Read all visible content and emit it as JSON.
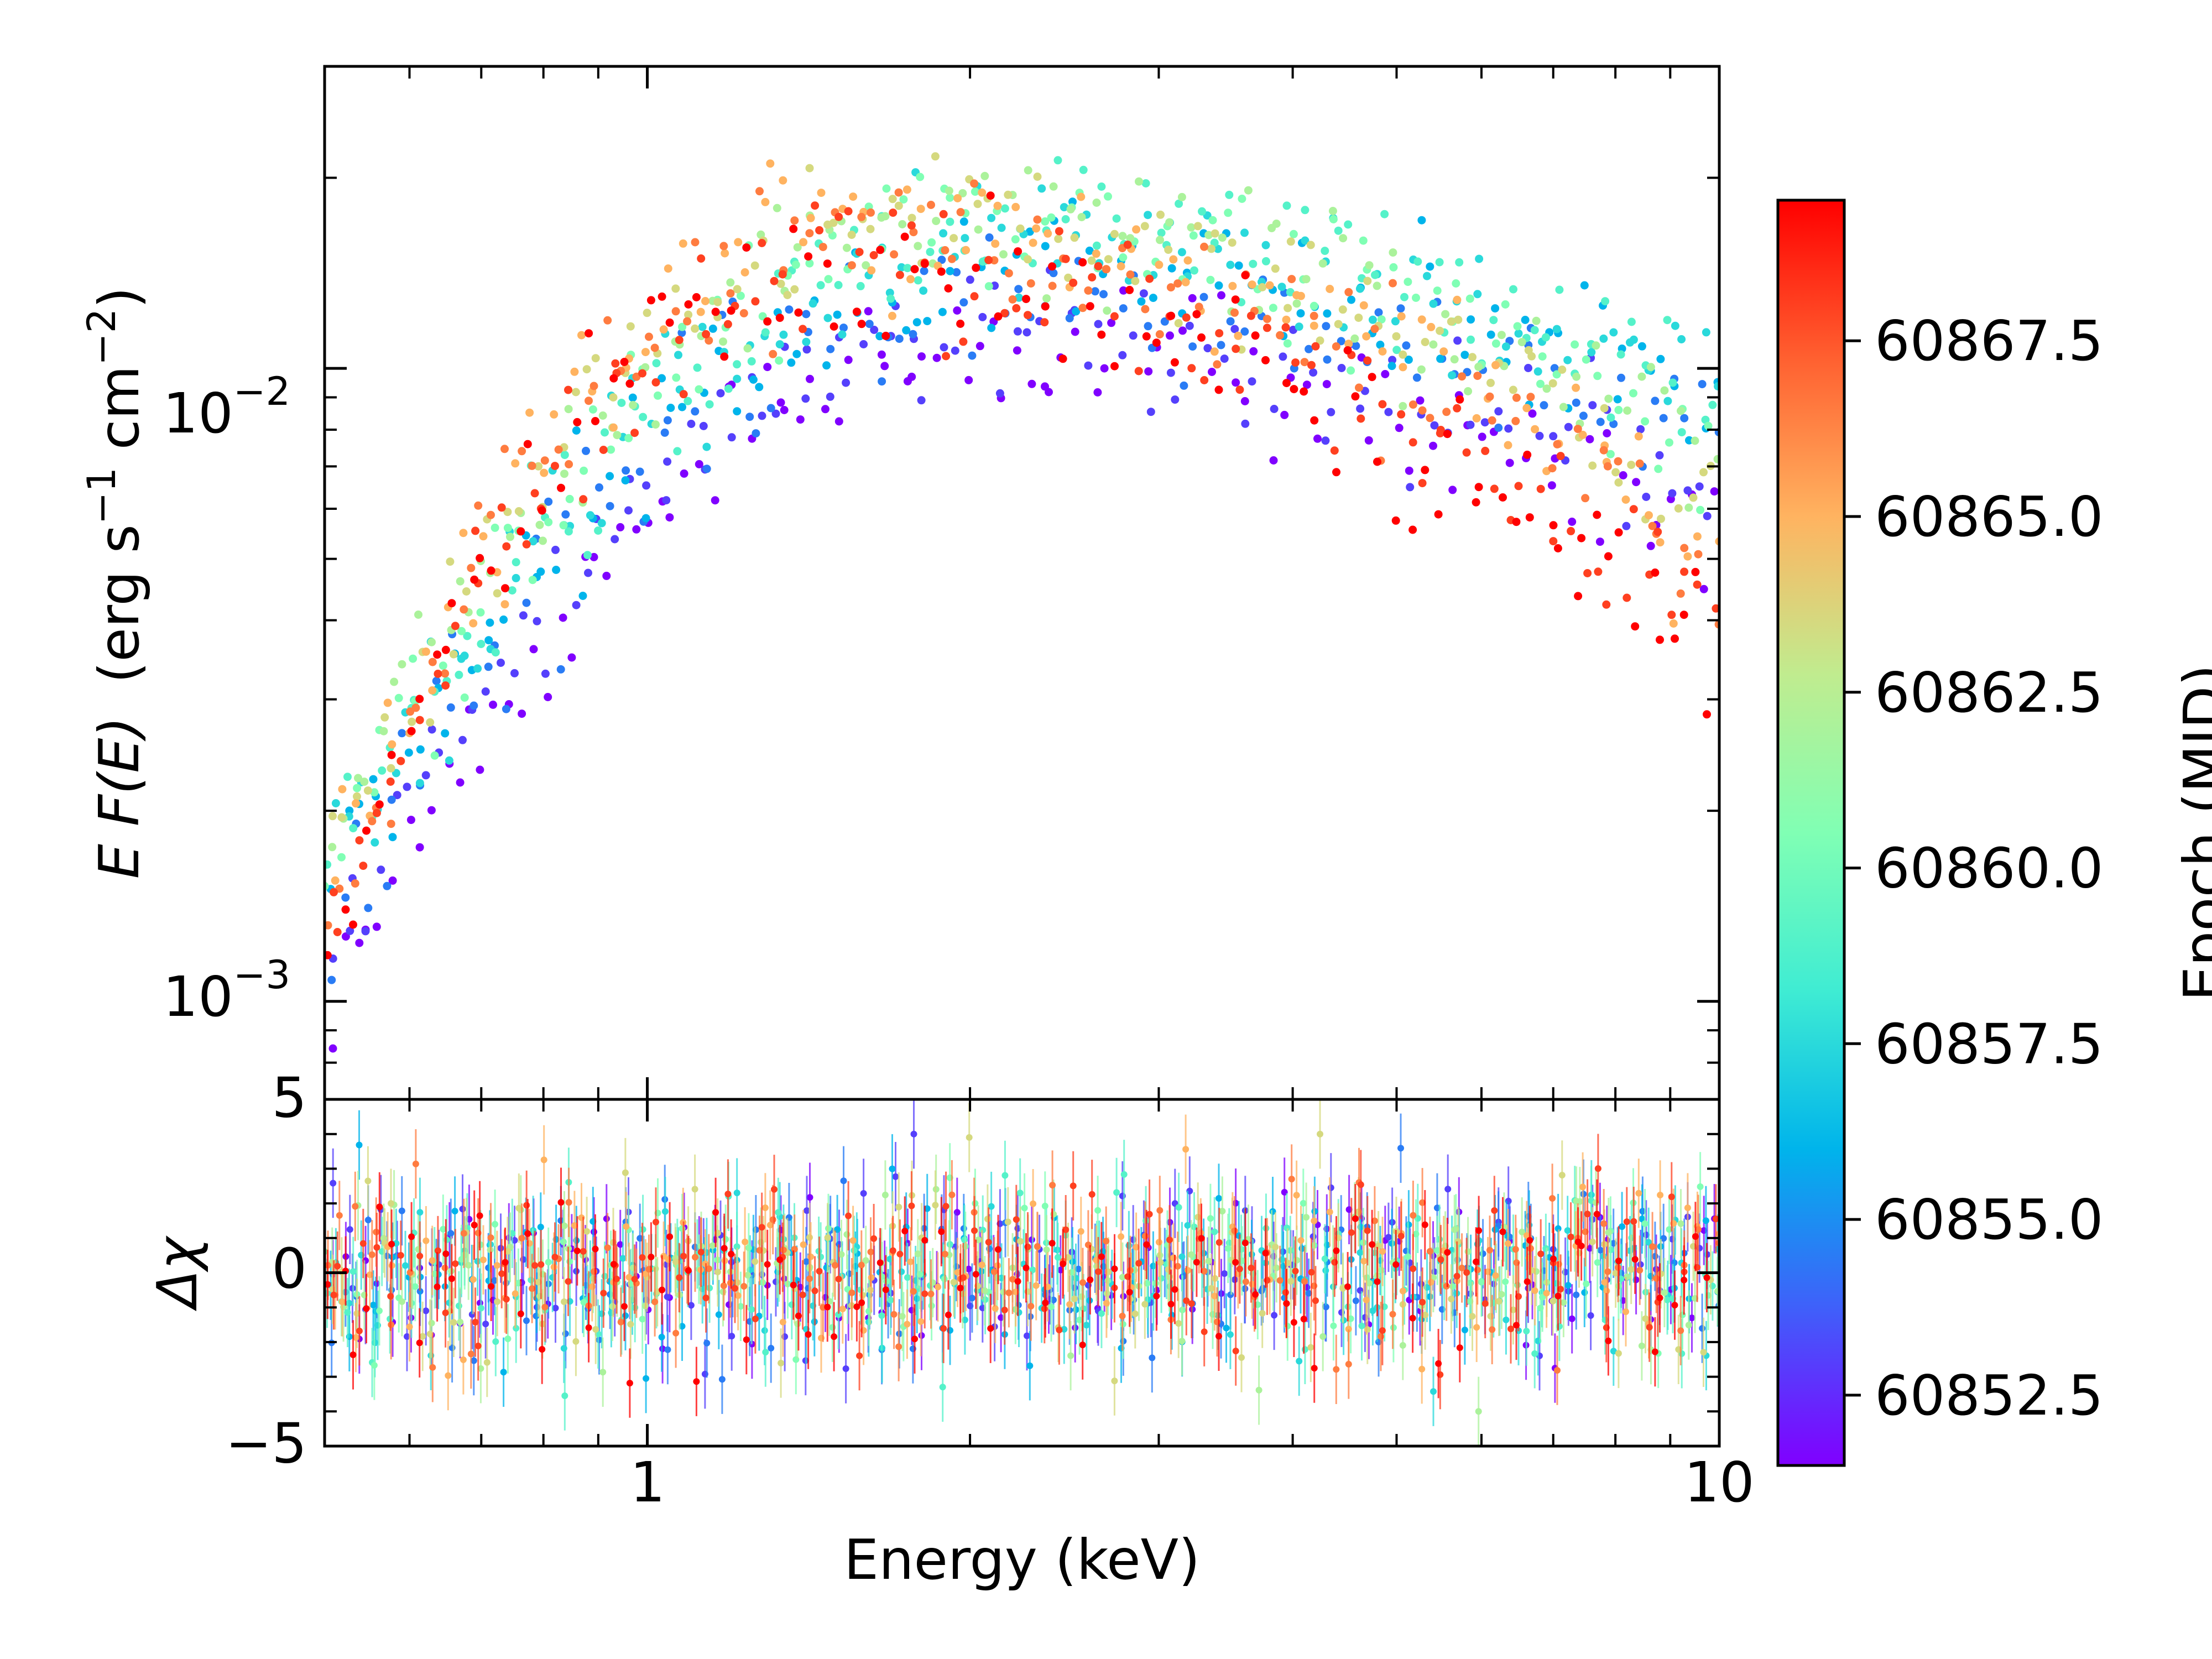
{
  "chart_data": {
    "type": "scatter",
    "description_panels": [
      "spectrum",
      "residuals"
    ],
    "x_axis": {
      "label": "Energy (keV)",
      "scale": "log",
      "range": [
        0.5,
        10
      ],
      "major_ticks": [
        1,
        10
      ],
      "major_tick_labels": [
        "1",
        "10"
      ]
    },
    "top_panel": {
      "ylabel_main": "E F(E)",
      "ylabel_units": "(erg s",
      "ylabel_units_exp1": "−1",
      "ylabel_units_mid": " cm",
      "ylabel_units_exp2": "−2",
      "ylabel_units_end": ")",
      "y_scale": "log",
      "y_range": [
        0.0007,
        0.03
      ],
      "major_ticks": [
        0.001,
        0.01
      ],
      "tick_labels": [
        {
          "value": 0.01,
          "base": "10",
          "exp": "−2"
        },
        {
          "value": 0.001,
          "base": "10",
          "exp": "−3"
        }
      ],
      "series": [
        {
          "epoch": 60851.5,
          "peak_energy": 1.9,
          "peak_flux": 0.0105,
          "flux_at_0_5keV": 0.0009,
          "flux_at_10keV": 0.0055
        },
        {
          "epoch": 60853.0,
          "peak_energy": 1.9,
          "peak_flux": 0.0115,
          "flux_at_0_5keV": 0.0011,
          "flux_at_10keV": 0.0065
        },
        {
          "epoch": 60854.5,
          "peak_energy": 2.0,
          "peak_flux": 0.0128,
          "flux_at_0_5keV": 0.0013,
          "flux_at_10keV": 0.0075
        },
        {
          "epoch": 60856.0,
          "peak_energy": 2.1,
          "peak_flux": 0.0145,
          "flux_at_0_5keV": 0.0014,
          "flux_at_10keV": 0.0085
        },
        {
          "epoch": 60857.5,
          "peak_energy": 2.3,
          "peak_flux": 0.0158,
          "flux_at_0_5keV": 0.0015,
          "flux_at_10keV": 0.0088
        },
        {
          "epoch": 60859.0,
          "peak_energy": 2.2,
          "peak_flux": 0.0165,
          "flux_at_0_5keV": 0.0016,
          "flux_at_10keV": 0.0085
        },
        {
          "epoch": 60860.5,
          "peak_energy": 2.0,
          "peak_flux": 0.0168,
          "flux_at_0_5keV": 0.0016,
          "flux_at_10keV": 0.0075
        },
        {
          "epoch": 60862.0,
          "peak_energy": 1.9,
          "peak_flux": 0.017,
          "flux_at_0_5keV": 0.0016,
          "flux_at_10keV": 0.007
        },
        {
          "epoch": 60863.5,
          "peak_energy": 1.7,
          "peak_flux": 0.0172,
          "flux_at_0_5keV": 0.0016,
          "flux_at_10keV": 0.006
        },
        {
          "epoch": 60865.0,
          "peak_energy": 1.6,
          "peak_flux": 0.017,
          "flux_at_0_5keV": 0.0015,
          "flux_at_10keV": 0.0052
        },
        {
          "epoch": 60866.5,
          "peak_energy": 1.5,
          "peak_flux": 0.016,
          "flux_at_0_5keV": 0.0014,
          "flux_at_10keV": 0.0045
        },
        {
          "epoch": 60868.0,
          "peak_energy": 1.5,
          "peak_flux": 0.0148,
          "flux_at_0_5keV": 0.0012,
          "flux_at_10keV": 0.004
        },
        {
          "epoch": 60869.5,
          "peak_energy": 1.4,
          "peak_flux": 0.014,
          "flux_at_0_5keV": 0.0011,
          "flux_at_10keV": 0.0036
        }
      ]
    },
    "bottom_panel": {
      "ylabel": "Δχ",
      "y_scale": "linear",
      "y_range": [
        -5,
        5
      ],
      "major_ticks": [
        -5,
        0,
        5
      ],
      "tick_labels": [
        "−5",
        "0",
        "5"
      ],
      "residual_spread": 1.2,
      "residual_max_abs": 4.0
    },
    "colorbar": {
      "label": "Epoch (MJD)",
      "colormap": "rainbow",
      "range": [
        60851.5,
        60869.5
      ],
      "ticks": [
        60852.5,
        60855.0,
        60857.5,
        60860.0,
        60862.5,
        60865.0,
        60867.5
      ],
      "tick_labels": [
        "60852.5",
        "60855.0",
        "60857.5",
        "60860.0",
        "60862.5",
        "60865.0",
        "60867.5"
      ],
      "color_stops": [
        "#8000ff",
        "#3f60fa",
        "#00b4eb",
        "#3fecd3",
        "#80ffb4",
        "#c0ec8f",
        "#ffb360",
        "#ff6030",
        "#ff0000"
      ]
    }
  }
}
